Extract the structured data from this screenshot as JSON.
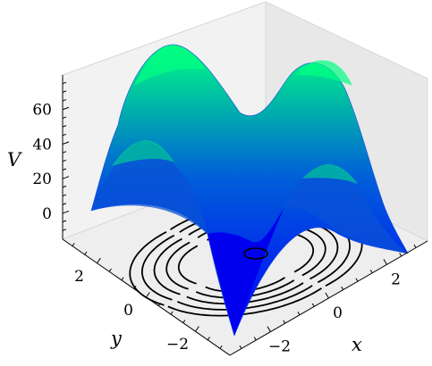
{
  "chart_data": {
    "type": "surface",
    "title": "",
    "xlabel": "x",
    "ylabel": "y",
    "zlabel": "V",
    "xlim": [
      -3.4,
      3.4
    ],
    "ylim": [
      -3.4,
      3.4
    ],
    "zlim": [
      -15,
      80
    ],
    "x_ticks": [
      {
        "v": -2,
        "t": "−2"
      },
      {
        "v": 0,
        "t": "0"
      },
      {
        "v": 2,
        "t": "2"
      }
    ],
    "y_ticks": [
      {
        "v": -2,
        "t": "−2"
      },
      {
        "v": 0,
        "t": "0"
      },
      {
        "v": 2,
        "t": "2"
      }
    ],
    "z_ticks": [
      {
        "v": 0,
        "t": "0"
      },
      {
        "v": 20,
        "t": "20"
      },
      {
        "v": 40,
        "t": "40"
      },
      {
        "v": 60,
        "t": "60"
      }
    ],
    "surface_extremes": {
      "max": 72,
      "min": -12
    },
    "contour_levels": [
      -5,
      8,
      20,
      35,
      50
    ],
    "colormap": [
      "#0000ff",
      "#00ff80"
    ],
    "contour_color": "#000000",
    "grid": false,
    "legend": "none"
  }
}
